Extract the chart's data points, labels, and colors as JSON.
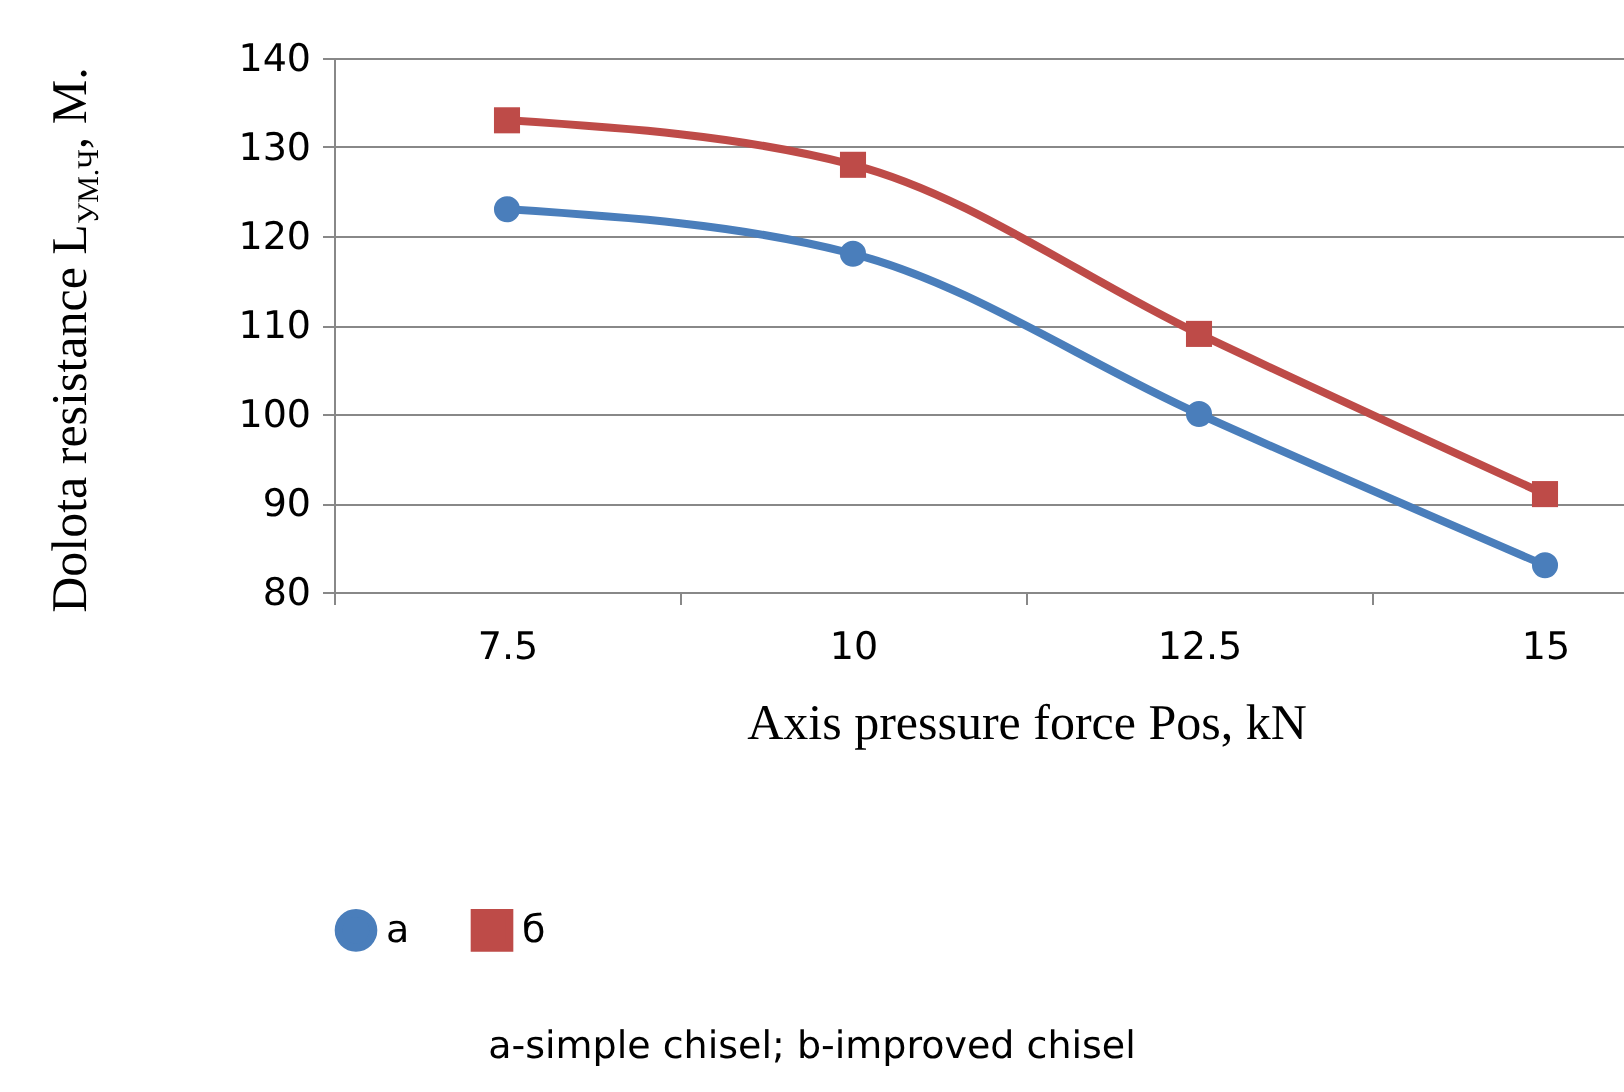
{
  "chart_data": {
    "type": "line",
    "xlabel": "Axis pressure force Pos, kN",
    "ylabel": "Dolota resistance L$_{УМ.Ч}$, М.",
    "categories": [
      "7.5",
      "10",
      "12.5",
      "15"
    ],
    "series": [
      {
        "name": "а",
        "color": "#4a7ebb",
        "marker": "circle",
        "values": [
          123,
          118,
          100,
          83
        ]
      },
      {
        "name": "б",
        "color": "#be4b48",
        "marker": "square",
        "values": [
          133,
          128,
          109,
          91
        ]
      }
    ],
    "ylim": [
      80,
      140
    ],
    "yticks": [
      80,
      90,
      100,
      110,
      120,
      130,
      140
    ],
    "grid": "y",
    "legend": "bottom",
    "annotations": [
      "a-simple chisel; b-improved chisel"
    ]
  }
}
